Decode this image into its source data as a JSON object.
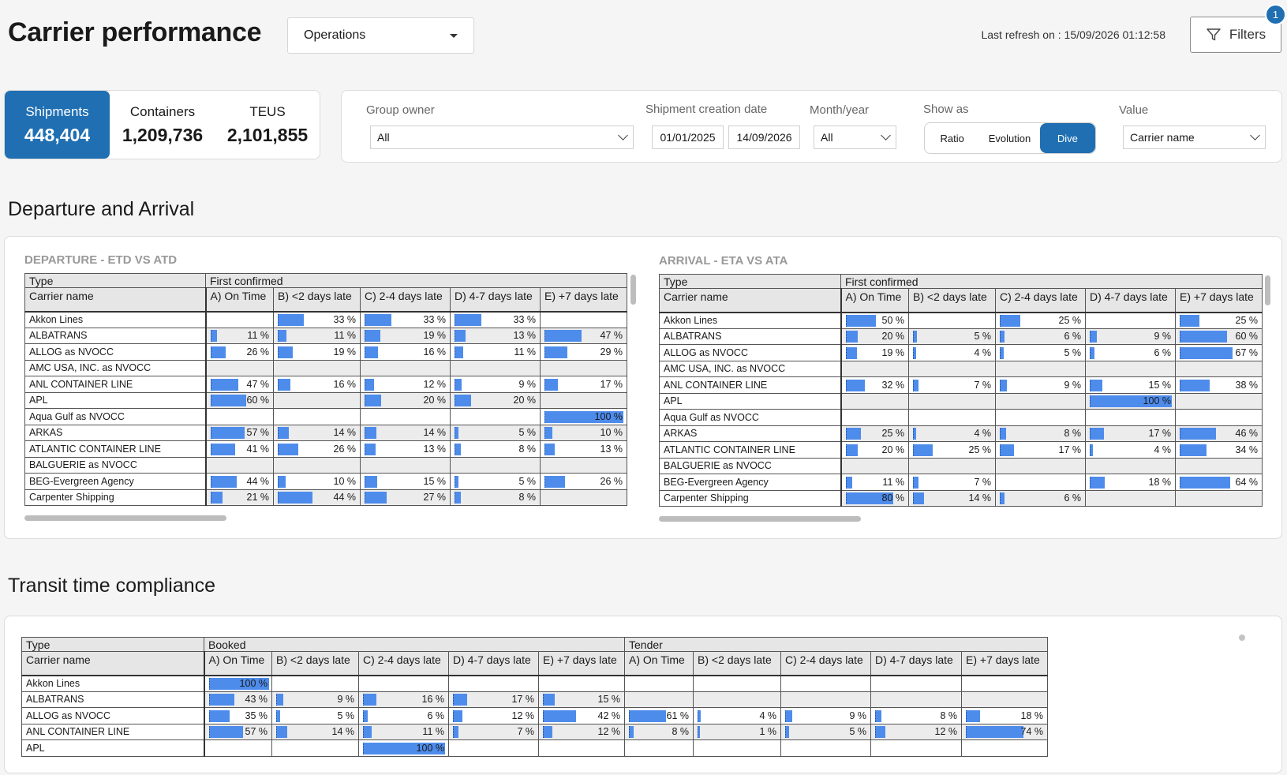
{
  "header": {
    "title": "Carrier performance",
    "view_select": "Operations",
    "last_refresh": "Last refresh on : 15/09/2026 01:12:58",
    "filters_label": "Filters",
    "filters_badge": "1"
  },
  "kpis": [
    {
      "label": "Shipments",
      "value": "448,404",
      "active": true
    },
    {
      "label": "Containers",
      "value": "1,209,736",
      "active": false
    },
    {
      "label": "TEUS",
      "value": "2,101,855",
      "active": false
    }
  ],
  "filters": {
    "group_owner_label": "Group owner",
    "group_owner_value": "All",
    "date_label": "Shipment creation date",
    "date_from": "01/01/2025",
    "date_to": "14/09/2026",
    "month_label": "Month/year",
    "month_value": "All",
    "show_as_label": "Show as",
    "show_as_options": [
      "Ratio",
      "Evolution",
      "Dive"
    ],
    "show_as_selected": "Dive",
    "value_label": "Value",
    "value_value": "Carrier name"
  },
  "sections": {
    "dep_arr": "Departure and Arrival",
    "transit": "Transit time compliance"
  },
  "departure": {
    "title": "DEPARTURE - ETD VS ATD",
    "type_label": "Type",
    "group_label": "First confirmed",
    "name_header": "Carrier name",
    "columns": [
      "A) On Time",
      "B) <2 days late",
      "C) 2-4 days late",
      "D) 4-7 days late",
      "E) +7 days late"
    ],
    "rows": [
      {
        "name": "Akkon Lines",
        "values": [
          null,
          33,
          33,
          33,
          null
        ]
      },
      {
        "name": "ALBATRANS",
        "values": [
          11,
          11,
          19,
          13,
          47
        ]
      },
      {
        "name": "ALLOG as NVOCC",
        "values": [
          26,
          19,
          16,
          11,
          29
        ]
      },
      {
        "name": "AMC USA, INC. as NVOCC",
        "values": [
          null,
          null,
          null,
          null,
          null
        ]
      },
      {
        "name": "ANL CONTAINER LINE",
        "values": [
          47,
          16,
          12,
          9,
          17
        ]
      },
      {
        "name": "APL",
        "values": [
          60,
          null,
          20,
          20,
          null
        ]
      },
      {
        "name": "Aqua Gulf as NVOCC",
        "values": [
          null,
          null,
          null,
          null,
          100
        ]
      },
      {
        "name": "ARKAS",
        "values": [
          57,
          14,
          14,
          5,
          10
        ]
      },
      {
        "name": "ATLANTIC CONTAINER LINE",
        "values": [
          41,
          26,
          13,
          8,
          13
        ]
      },
      {
        "name": "BALGUERIE as NVOCC",
        "values": [
          null,
          null,
          null,
          null,
          null
        ]
      },
      {
        "name": "BEG-Evergreen Agency",
        "values": [
          44,
          10,
          15,
          5,
          26
        ]
      },
      {
        "name": "Carpenter Shipping",
        "values": [
          21,
          44,
          27,
          8,
          null
        ]
      }
    ]
  },
  "arrival": {
    "title": "ARRIVAL - ETA VS ATA",
    "type_label": "Type",
    "group_label": "First confirmed",
    "name_header": "Carrier name",
    "columns": [
      "A) On Time",
      "B) <2 days late",
      "C) 2-4 days late",
      "D) 4-7 days late",
      "E) +7 days late"
    ],
    "rows": [
      {
        "name": "Akkon Lines",
        "values": [
          50,
          null,
          25,
          null,
          25
        ]
      },
      {
        "name": "ALBATRANS",
        "values": [
          20,
          5,
          6,
          9,
          60
        ]
      },
      {
        "name": "ALLOG as NVOCC",
        "values": [
          19,
          4,
          5,
          6,
          67
        ]
      },
      {
        "name": "AMC USA, INC. as NVOCC",
        "values": [
          null,
          null,
          null,
          null,
          null
        ]
      },
      {
        "name": "ANL CONTAINER LINE",
        "values": [
          32,
          7,
          9,
          15,
          38
        ]
      },
      {
        "name": "APL",
        "values": [
          null,
          null,
          null,
          100,
          null
        ]
      },
      {
        "name": "Aqua Gulf as NVOCC",
        "values": [
          null,
          null,
          null,
          null,
          null
        ]
      },
      {
        "name": "ARKAS",
        "values": [
          25,
          4,
          8,
          17,
          46
        ]
      },
      {
        "name": "ATLANTIC CONTAINER LINE",
        "values": [
          20,
          25,
          17,
          4,
          34
        ]
      },
      {
        "name": "BALGUERIE as NVOCC",
        "values": [
          null,
          null,
          null,
          null,
          null
        ]
      },
      {
        "name": "BEG-Evergreen Agency",
        "values": [
          11,
          7,
          null,
          18,
          64
        ]
      },
      {
        "name": "Carpenter Shipping",
        "values": [
          80,
          14,
          6,
          null,
          null
        ]
      }
    ]
  },
  "transit": {
    "type_label": "Type",
    "group_labels": [
      "Booked",
      "Tender"
    ],
    "name_header": "Carrier name",
    "columns": [
      "A) On Time",
      "B) <2 days late",
      "C) 2-4 days late",
      "D) 4-7 days late",
      "E) +7 days late",
      "A) On Time",
      "B) <2 days late",
      "C) 2-4 days late",
      "D) 4-7 days late",
      "E) +7 days late"
    ],
    "rows": [
      {
        "name": "Akkon Lines",
        "values": [
          100,
          null,
          null,
          null,
          null,
          null,
          null,
          null,
          null,
          null
        ]
      },
      {
        "name": "ALBATRANS",
        "values": [
          43,
          9,
          16,
          17,
          15,
          null,
          null,
          null,
          null,
          null
        ]
      },
      {
        "name": "ALLOG as NVOCC",
        "values": [
          35,
          5,
          6,
          12,
          42,
          61,
          4,
          9,
          8,
          18
        ]
      },
      {
        "name": "ANL CONTAINER LINE",
        "values": [
          57,
          14,
          11,
          7,
          12,
          8,
          1,
          5,
          12,
          74
        ]
      },
      {
        "name": "APL",
        "values": [
          null,
          null,
          100,
          null,
          null,
          null,
          null,
          null,
          null,
          null
        ]
      }
    ]
  }
}
